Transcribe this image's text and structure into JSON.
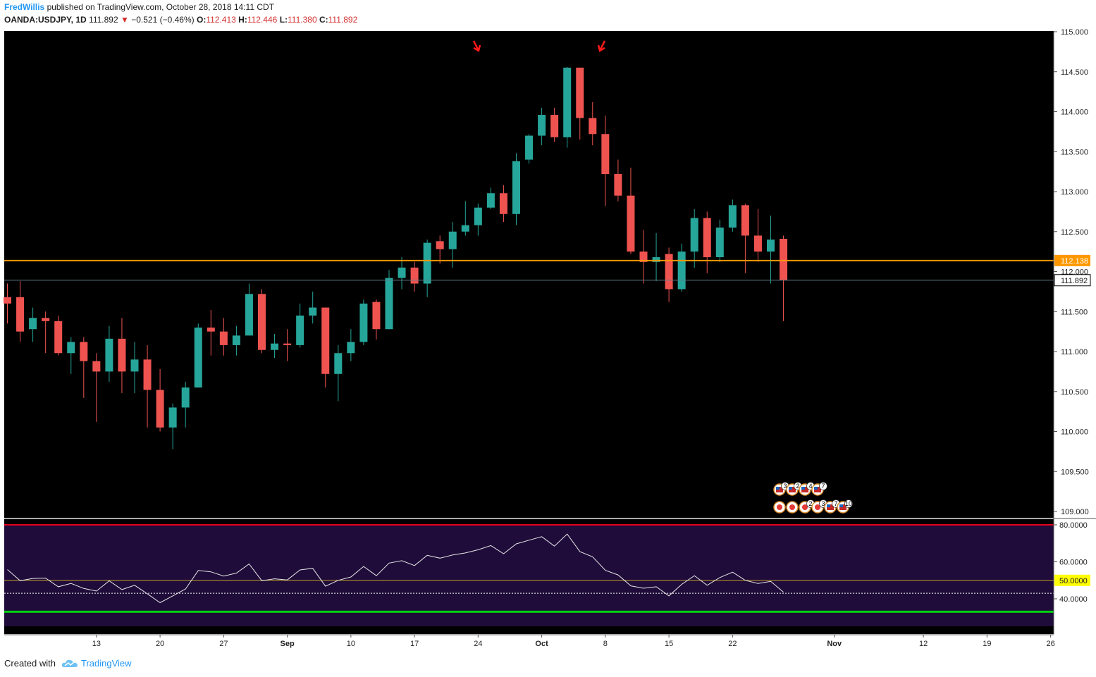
{
  "header": {
    "author": "FredWillis",
    "published": "published on TradingView.com, October 28, 2018 14:11 CDT",
    "symbol": "OANDA:USDJPY, 1D",
    "last": "111.892",
    "change": "−0.521 (−0.46%)",
    "o_label": "O:",
    "o_value": "112.413",
    "h_label": "H:",
    "h_value": "112.446",
    "l_label": "L:",
    "l_value": "111.380",
    "c_label": "C:",
    "c_value": "111.892"
  },
  "footer": {
    "created_with": "Created with",
    "brand": "TradingView"
  },
  "colors": {
    "up": "#26a69a",
    "down": "#ef5350",
    "background": "#000000",
    "rsi_background": "#1f0c3a",
    "hline": "#ff9800",
    "rsi_upper": "#e4001b",
    "rsi_lower": "#00d10f"
  },
  "chart_data": [
    {
      "type": "candlestick",
      "title": "OANDA:USDJPY, 1D",
      "ylim": [
        108.9,
        115.1
      ],
      "y_ticks": [
        "115.000",
        "114.500",
        "114.000",
        "113.500",
        "113.000",
        "112.500",
        "112.000",
        "111.500",
        "111.000",
        "110.500",
        "110.000",
        "109.500",
        "109.000"
      ],
      "x_ticks": [
        "13",
        "20",
        "27",
        "Sep",
        "10",
        "17",
        "24",
        "Oct",
        "8",
        "15",
        "22",
        "Nov",
        "12",
        "19",
        "26"
      ],
      "horizontal_line": {
        "value": 112.138,
        "label": "112.138"
      },
      "last_price": {
        "value": 111.892,
        "label": "111.892"
      },
      "candles": [
        {
          "o": 111.68,
          "h": 111.85,
          "l": 111.35,
          "c": 111.6
        },
        {
          "o": 111.68,
          "h": 111.88,
          "l": 111.12,
          "c": 111.25
        },
        {
          "o": 111.28,
          "h": 111.55,
          "l": 111.12,
          "c": 111.42
        },
        {
          "o": 111.42,
          "h": 111.5,
          "l": 110.98,
          "c": 111.38
        },
        {
          "o": 111.38,
          "h": 111.45,
          "l": 110.95,
          "c": 110.98
        },
        {
          "o": 110.98,
          "h": 111.18,
          "l": 110.72,
          "c": 111.12
        },
        {
          "o": 111.12,
          "h": 111.18,
          "l": 110.42,
          "c": 110.88
        },
        {
          "o": 110.88,
          "h": 110.98,
          "l": 110.12,
          "c": 110.75
        },
        {
          "o": 110.75,
          "h": 111.32,
          "l": 110.62,
          "c": 111.16
        },
        {
          "o": 111.16,
          "h": 111.42,
          "l": 110.48,
          "c": 110.75
        },
        {
          "o": 110.75,
          "h": 111.12,
          "l": 110.48,
          "c": 110.9
        },
        {
          "o": 110.9,
          "h": 111.08,
          "l": 110.05,
          "c": 110.52
        },
        {
          "o": 110.52,
          "h": 110.78,
          "l": 110.0,
          "c": 110.05
        },
        {
          "o": 110.05,
          "h": 110.35,
          "l": 109.78,
          "c": 110.3
        },
        {
          "o": 110.3,
          "h": 110.62,
          "l": 110.05,
          "c": 110.55
        },
        {
          "o": 110.55,
          "h": 111.35,
          "l": 110.55,
          "c": 111.3
        },
        {
          "o": 111.3,
          "h": 111.52,
          "l": 110.95,
          "c": 111.25
        },
        {
          "o": 111.25,
          "h": 111.42,
          "l": 110.95,
          "c": 111.08
        },
        {
          "o": 111.08,
          "h": 111.32,
          "l": 110.95,
          "c": 111.2
        },
        {
          "o": 111.2,
          "h": 111.85,
          "l": 111.2,
          "c": 111.72
        },
        {
          "o": 111.72,
          "h": 111.78,
          "l": 110.98,
          "c": 111.02
        },
        {
          "o": 111.02,
          "h": 111.22,
          "l": 110.92,
          "c": 111.1
        },
        {
          "o": 111.1,
          "h": 111.28,
          "l": 110.88,
          "c": 111.08
        },
        {
          "o": 111.08,
          "h": 111.6,
          "l": 111.05,
          "c": 111.45
        },
        {
          "o": 111.45,
          "h": 111.75,
          "l": 111.35,
          "c": 111.55
        },
        {
          "o": 111.55,
          "h": 111.55,
          "l": 110.55,
          "c": 110.72
        },
        {
          "o": 110.72,
          "h": 111.08,
          "l": 110.38,
          "c": 110.98
        },
        {
          "o": 110.98,
          "h": 111.28,
          "l": 110.88,
          "c": 111.12
        },
        {
          "o": 111.12,
          "h": 111.65,
          "l": 111.08,
          "c": 111.6
        },
        {
          "o": 111.62,
          "h": 111.65,
          "l": 111.15,
          "c": 111.28
        },
        {
          "o": 111.28,
          "h": 112.02,
          "l": 111.28,
          "c": 111.92
        },
        {
          "o": 111.92,
          "h": 112.18,
          "l": 111.78,
          "c": 112.05
        },
        {
          "o": 112.05,
          "h": 112.12,
          "l": 111.75,
          "c": 111.85
        },
        {
          "o": 111.85,
          "h": 112.4,
          "l": 111.68,
          "c": 112.36
        },
        {
          "o": 112.38,
          "h": 112.45,
          "l": 112.1,
          "c": 112.28
        },
        {
          "o": 112.28,
          "h": 112.62,
          "l": 112.05,
          "c": 112.5
        },
        {
          "o": 112.5,
          "h": 112.88,
          "l": 112.45,
          "c": 112.58
        },
        {
          "o": 112.58,
          "h": 112.85,
          "l": 112.45,
          "c": 112.8
        },
        {
          "o": 112.8,
          "h": 113.05,
          "l": 112.78,
          "c": 112.98
        },
        {
          "o": 112.98,
          "h": 113.08,
          "l": 112.62,
          "c": 112.72
        },
        {
          "o": 112.72,
          "h": 113.48,
          "l": 112.58,
          "c": 113.38
        },
        {
          "o": 113.4,
          "h": 113.72,
          "l": 113.35,
          "c": 113.7
        },
        {
          "o": 113.7,
          "h": 114.05,
          "l": 113.58,
          "c": 113.96
        },
        {
          "o": 113.96,
          "h": 114.05,
          "l": 113.62,
          "c": 113.68
        },
        {
          "o": 113.68,
          "h": 114.56,
          "l": 113.55,
          "c": 114.55
        },
        {
          "o": 114.55,
          "h": 114.55,
          "l": 113.65,
          "c": 113.92
        },
        {
          "o": 113.92,
          "h": 114.12,
          "l": 113.58,
          "c": 113.72
        },
        {
          "o": 113.72,
          "h": 113.95,
          "l": 112.82,
          "c": 113.22
        },
        {
          "o": 113.22,
          "h": 113.4,
          "l": 112.88,
          "c": 112.95
        },
        {
          "o": 112.95,
          "h": 113.3,
          "l": 112.22,
          "c": 112.25
        },
        {
          "o": 112.25,
          "h": 112.52,
          "l": 111.85,
          "c": 112.12
        },
        {
          "o": 112.12,
          "h": 112.48,
          "l": 111.88,
          "c": 112.18
        },
        {
          "o": 112.22,
          "h": 112.3,
          "l": 111.62,
          "c": 111.78
        },
        {
          "o": 111.78,
          "h": 112.35,
          "l": 111.75,
          "c": 112.25
        },
        {
          "o": 112.25,
          "h": 112.78,
          "l": 112.05,
          "c": 112.67
        },
        {
          "o": 112.67,
          "h": 112.75,
          "l": 111.98,
          "c": 112.18
        },
        {
          "o": 112.18,
          "h": 112.65,
          "l": 112.12,
          "c": 112.55
        },
        {
          "o": 112.55,
          "h": 112.9,
          "l": 112.5,
          "c": 112.83
        },
        {
          "o": 112.83,
          "h": 112.85,
          "l": 111.98,
          "c": 112.45
        },
        {
          "o": 112.45,
          "h": 112.78,
          "l": 112.12,
          "c": 112.25
        },
        {
          "o": 112.25,
          "h": 112.7,
          "l": 111.85,
          "c": 112.4
        },
        {
          "o": 112.41,
          "h": 112.45,
          "l": 111.38,
          "c": 111.89
        }
      ],
      "arrows_over_candles": [
        37,
        47
      ]
    },
    {
      "type": "line",
      "title": "RSI",
      "ylim": [
        33,
        82
      ],
      "y_ticks": [
        "80.0000",
        "60.0000",
        "40.0000"
      ],
      "midline": {
        "value": 50,
        "label": "50.0000"
      },
      "upper_band": 80,
      "lower_band": 33,
      "current_level": 43,
      "values": [
        55.8,
        49.8,
        51.0,
        51.2,
        46.5,
        48.3,
        45.6,
        44.2,
        49.7,
        45.0,
        47.3,
        42.7,
        37.9,
        41.6,
        45.3,
        55.3,
        54.6,
        52.3,
        53.9,
        58.8,
        49.8,
        50.8,
        50.2,
        55.6,
        56.5,
        46.8,
        50.0,
        51.8,
        57.5,
        52.5,
        59.3,
        60.6,
        58.0,
        63.5,
        62.0,
        63.7,
        64.8,
        66.5,
        68.8,
        64.4,
        69.7,
        71.7,
        73.6,
        68.5,
        75.0,
        65.5,
        62.7,
        55.4,
        52.9,
        47.0,
        45.7,
        46.5,
        41.6,
        47.8,
        52.5,
        47.3,
        51.5,
        54.4,
        50.0,
        48.3,
        49.4,
        43.6
      ]
    }
  ]
}
